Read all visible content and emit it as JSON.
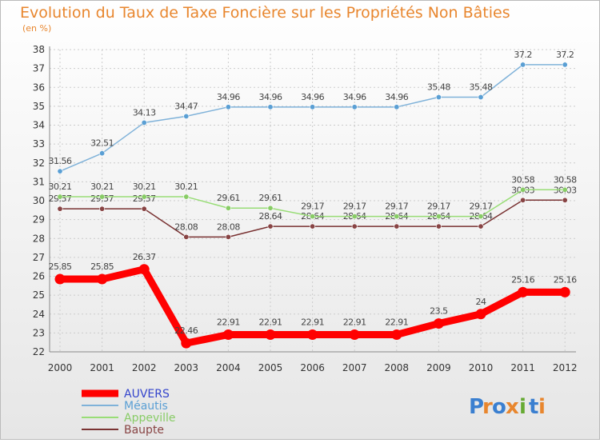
{
  "chart_data": {
    "type": "line",
    "title": "Evolution du Taux de Taxe Foncière sur les Propriétés Non Bâties",
    "subtitle": "(en %)",
    "xlabel": "",
    "ylabel": "",
    "categories": [
      "2000",
      "2001",
      "2002",
      "2003",
      "2004",
      "2005",
      "2006",
      "2007",
      "2008",
      "2009",
      "2010",
      "2011",
      "2012"
    ],
    "ylim": [
      22,
      38
    ],
    "yticks": [
      "22",
      "23",
      "24",
      "25",
      "26",
      "27",
      "28",
      "29",
      "30",
      "31",
      "32",
      "33",
      "34",
      "35",
      "36",
      "37",
      "38"
    ],
    "grid": true,
    "legend": "bottom-left",
    "series": [
      {
        "name": "AUVERS",
        "color": "#ff0000",
        "label_color": "#3344cc",
        "values": [
          25.85,
          25.85,
          26.37,
          22.46,
          22.91,
          22.91,
          22.91,
          22.91,
          22.91,
          23.5,
          24,
          25.16,
          25.16
        ],
        "labels": [
          "25.85",
          "25.85",
          "26.37",
          "22.46",
          "22.91",
          "22.91",
          "22.91",
          "22.91",
          "22.91",
          "23.5",
          "24",
          "25.16",
          "25.16"
        ]
      },
      {
        "name": "Méautis",
        "color": "#7fb2d9",
        "label_color": "#5a9fd4",
        "values": [
          31.56,
          32.51,
          34.13,
          34.47,
          34.96,
          34.96,
          34.96,
          34.96,
          34.96,
          35.48,
          35.48,
          37.2,
          37.2
        ],
        "labels": [
          "31.56",
          "32.51",
          "34.13",
          "34.47",
          "34.96",
          "34.96",
          "34.96",
          "34.96",
          "34.96",
          "35.48",
          "35.48",
          "37.2",
          "37.2"
        ]
      },
      {
        "name": "Appeville",
        "color": "#99dd77",
        "label_color": "#88cc66",
        "values": [
          30.21,
          30.21,
          30.21,
          30.21,
          29.61,
          29.61,
          29.17,
          29.17,
          29.17,
          29.17,
          29.17,
          30.58,
          30.58
        ],
        "labels": [
          "30.21",
          "30.21",
          "30.21",
          "30.21",
          "29.61",
          "29.61",
          "29.17",
          "29.17",
          "29.17",
          "29.17",
          "29.17",
          "30.58",
          "30.58"
        ]
      },
      {
        "name": "Baupte",
        "color": "#7a3333",
        "label_color": "#884444",
        "values": [
          29.57,
          29.57,
          29.57,
          28.08,
          28.08,
          28.64,
          28.64,
          28.64,
          28.64,
          28.64,
          28.64,
          30.03,
          30.03
        ],
        "labels": [
          "29.57",
          "29.57",
          "29.57",
          "28.08",
          "28.08",
          "28.64",
          "28.64",
          "28.64",
          "28.64",
          "28.64",
          "28.64",
          "30.03",
          "30.03"
        ]
      }
    ]
  },
  "brand": {
    "letters": [
      "P",
      "r",
      "o",
      "x",
      "i",
      "t",
      "i"
    ],
    "colors": [
      "#3a7fd0",
      "#e8862e",
      "#3a7fd0",
      "#e8862e",
      "#66aa33",
      "#3a7fd0",
      "#e8862e"
    ]
  }
}
